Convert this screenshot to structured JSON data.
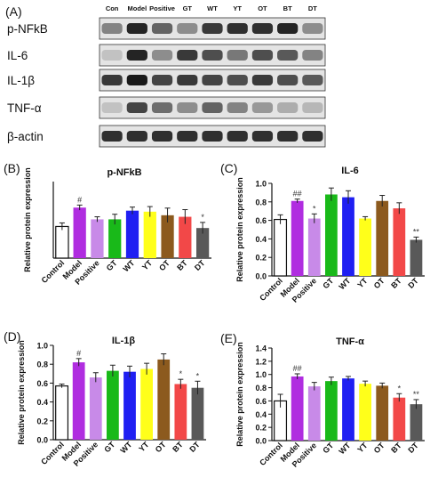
{
  "blot": {
    "panel_label": "(A)",
    "lane_labels": [
      "Con",
      "Model",
      "Positive",
      "GT",
      "WT",
      "YT",
      "OT",
      "BT",
      "DT"
    ],
    "proteins": [
      "p-NFkB",
      "IL-6",
      "IL-1β",
      "TNF-α",
      "β-actin"
    ],
    "band_darkness": [
      [
        0.45,
        0.9,
        0.6,
        0.4,
        0.8,
        0.85,
        0.85,
        0.9,
        0.4
      ],
      [
        0.15,
        0.9,
        0.4,
        0.8,
        0.7,
        0.5,
        0.7,
        0.65,
        0.45
      ],
      [
        0.8,
        0.95,
        0.75,
        0.8,
        0.75,
        0.7,
        0.8,
        0.7,
        0.65
      ],
      [
        0.15,
        0.75,
        0.55,
        0.4,
        0.6,
        0.45,
        0.35,
        0.25,
        0.2
      ],
      [
        0.85,
        0.85,
        0.85,
        0.85,
        0.85,
        0.85,
        0.85,
        0.85,
        0.85
      ]
    ]
  },
  "bar_colors": [
    "#ffffff",
    "#b02de0",
    "#c88ae8",
    "#19b919",
    "#1f1ff2",
    "#ffff1a",
    "#8c5a1e",
    "#f24848",
    "#595959"
  ],
  "chart_data": [
    {
      "type": "bar",
      "panel_label": "(B)",
      "title": "p-NFkB",
      "ylabel": "Relative protein expression",
      "categories": [
        "Control",
        "Model",
        "Positive",
        "GT",
        "WT",
        "YT",
        "OT",
        "BT",
        "DT"
      ],
      "values": [
        0.62,
        0.99,
        0.76,
        0.76,
        0.93,
        0.91,
        0.84,
        0.81,
        0.59
      ],
      "errors": [
        0.07,
        0.05,
        0.05,
        0.1,
        0.07,
        0.1,
        0.14,
        0.14,
        0.11
      ],
      "annotations": [
        "",
        "#",
        "",
        "",
        "",
        "",
        "",
        "",
        "*"
      ],
      "ylim": [
        0,
        1.5
      ],
      "yticks": [],
      "grid": false
    },
    {
      "type": "bar",
      "panel_label": "(C)",
      "title": "IL-6",
      "ylabel": "Relative protein expression",
      "categories": [
        "Control",
        "Model",
        "Positive",
        "GT",
        "WT",
        "YT",
        "OT",
        "BT",
        "DT"
      ],
      "values": [
        0.61,
        0.81,
        0.62,
        0.88,
        0.85,
        0.62,
        0.81,
        0.73,
        0.39
      ],
      "errors": [
        0.05,
        0.02,
        0.05,
        0.07,
        0.07,
        0.02,
        0.06,
        0.06,
        0.03
      ],
      "annotations": [
        "",
        "##",
        "*",
        "",
        "",
        "",
        "",
        "",
        "**"
      ],
      "ylim": [
        0,
        1.0
      ],
      "yticks": [
        "0.0",
        "0.2",
        "0.4",
        "0.6",
        "0.8",
        "1.0"
      ],
      "grid": false
    },
    {
      "type": "bar",
      "panel_label": "(D)",
      "title": "IL-1β",
      "ylabel": "Relative protein expression",
      "categories": [
        "Control",
        "Model",
        "Positive",
        "GT",
        "WT",
        "YT",
        "OT",
        "BT",
        "DT"
      ],
      "values": [
        0.57,
        0.82,
        0.66,
        0.73,
        0.72,
        0.75,
        0.85,
        0.59,
        0.55
      ],
      "errors": [
        0.02,
        0.04,
        0.05,
        0.06,
        0.06,
        0.06,
        0.06,
        0.05,
        0.07
      ],
      "annotations": [
        "",
        "#",
        "",
        "",
        "",
        "",
        "",
        "*",
        "*"
      ],
      "ylim": [
        0,
        1.0
      ],
      "yticks": [
        "0.0",
        "0.2",
        "0.4",
        "0.6",
        "0.8",
        "1.0"
      ],
      "grid": false
    },
    {
      "type": "bar",
      "panel_label": "(E)",
      "title": "TNF-α",
      "ylabel": "Relative protein expression",
      "categories": [
        "Control",
        "Model",
        "Positive",
        "GT",
        "WT",
        "YT",
        "OT",
        "BT",
        "DT"
      ],
      "values": [
        0.6,
        0.97,
        0.82,
        0.9,
        0.94,
        0.86,
        0.83,
        0.65,
        0.55
      ],
      "errors": [
        0.1,
        0.04,
        0.06,
        0.06,
        0.03,
        0.04,
        0.04,
        0.06,
        0.07
      ],
      "annotations": [
        "",
        "##",
        "",
        "",
        "",
        "",
        "",
        "*",
        "**"
      ],
      "ylim": [
        0,
        1.4
      ],
      "yticks": [
        "0.0",
        "0.2",
        "0.4",
        "0.6",
        "0.8",
        "1.0",
        "1.2",
        "1.4"
      ],
      "grid": false
    }
  ]
}
